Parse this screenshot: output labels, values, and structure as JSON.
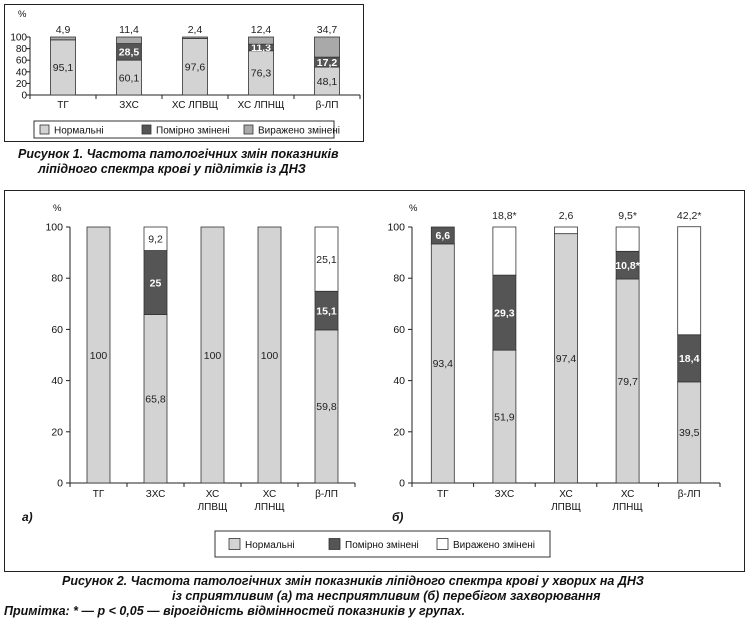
{
  "colors": {
    "normal": "#d3d3d3",
    "moderate": "#555555",
    "severe": "#ffffff",
    "edge": "#333333",
    "frame": "#222222"
  },
  "captions": {
    "fig1_line1": "Рисунок 1. Частота патологічних змін показників",
    "fig1_line2": "ліпідного спектра крові у підлітків із ДНЗ",
    "fig2_line1": "Рисунок 2. Частота патологічних змін показників ліпідного спектра крові у хворих на ДНЗ",
    "fig2_line2": "із сприятливим (а) та несприятливим (б) перебігом захворювання",
    "note": "Примітка: * — р < 0,05 — вірогідність відмінностей показників у групах."
  },
  "chart_data": [
    {
      "id": "fig1",
      "type": "bar",
      "stacked": true,
      "ylabel": "%",
      "ylim": [
        0,
        100
      ],
      "yticks": [
        0,
        20,
        40,
        60,
        80,
        100
      ],
      "categories": [
        "ТГ",
        "ЗХС",
        "ХС ЛПВЩ",
        "ХС ЛПНЩ",
        "β-ЛП"
      ],
      "series": [
        {
          "name": "Нормальні",
          "color_key": "normal",
          "values": [
            95.1,
            60.1,
            97.6,
            76.3,
            48.1
          ],
          "labels": [
            "95,1",
            "60,1",
            "97,6",
            "76,3",
            "48,1"
          ]
        },
        {
          "name": "Помірно змінені",
          "color_key": "moderate",
          "values": [
            0,
            28.5,
            0,
            11.3,
            17.2
          ],
          "labels": [
            "",
            "28,5",
            "",
            "11,3",
            "17,2"
          ]
        },
        {
          "name": "Виражено змінені",
          "color_key": "severe_fig1",
          "values": [
            4.9,
            11.4,
            2.4,
            12.4,
            34.7
          ],
          "labels": [
            "4,9",
            "11,4",
            "2,4",
            "12,4",
            "34,7"
          ]
        }
      ],
      "legend_position": "bottom"
    },
    {
      "id": "fig2a",
      "type": "bar",
      "stacked": true,
      "panel_label": "а)",
      "ylabel": "%",
      "ylim": [
        0,
        100
      ],
      "yticks": [
        0,
        20,
        40,
        60,
        80,
        100
      ],
      "categories": [
        "ТГ",
        "ЗХС",
        "ХС ЛПВЩ",
        "ХС ЛПНЩ",
        "β-ЛП"
      ],
      "series": [
        {
          "name": "Нормальні",
          "color_key": "normal",
          "values": [
            100,
            65.8,
            100,
            100,
            59.8
          ],
          "labels": [
            "100",
            "65,8",
            "100",
            "100",
            "59,8"
          ]
        },
        {
          "name": "Помірно змінені",
          "color_key": "moderate",
          "values": [
            0,
            25,
            0,
            0,
            15.1
          ],
          "labels": [
            "",
            "25",
            "",
            "",
            "15,1"
          ]
        },
        {
          "name": "Виражено змінені",
          "color_key": "severe",
          "values": [
            0,
            9.2,
            0,
            0,
            25.1
          ],
          "labels": [
            "",
            "9,2",
            "",
            "",
            "25,1"
          ]
        }
      ]
    },
    {
      "id": "fig2b",
      "type": "bar",
      "stacked": true,
      "panel_label": "б)",
      "ylabel": "%",
      "ylim": [
        0,
        100
      ],
      "yticks": [
        0,
        20,
        40,
        60,
        80,
        100
      ],
      "categories": [
        "ТГ",
        "ЗХС",
        "ХС ЛПВЩ",
        "ХС ЛПНЩ",
        "β-ЛП"
      ],
      "series": [
        {
          "name": "Нормальні",
          "color_key": "normal",
          "values": [
            93.4,
            51.9,
            97.4,
            79.7,
            39.5
          ],
          "labels": [
            "93,4",
            "51,9",
            "97,4",
            "79,7",
            "39,5"
          ]
        },
        {
          "name": "Помірно змінені",
          "color_key": "moderate",
          "values": [
            6.6,
            29.3,
            0,
            10.8,
            18.4
          ],
          "labels": [
            "6,6",
            "29,3",
            "",
            "10,8*",
            "18,4"
          ]
        },
        {
          "name": "Виражено змінені",
          "color_key": "severe",
          "values": [
            0,
            18.8,
            2.6,
            9.5,
            42.2
          ],
          "labels": [
            "",
            "18,8*",
            "2,6",
            "9,5*",
            "42,2*"
          ]
        }
      ],
      "legend_position": "bottom"
    }
  ],
  "legend": [
    "Нормальні",
    "Помірно змінені",
    "Виражено змінені"
  ]
}
